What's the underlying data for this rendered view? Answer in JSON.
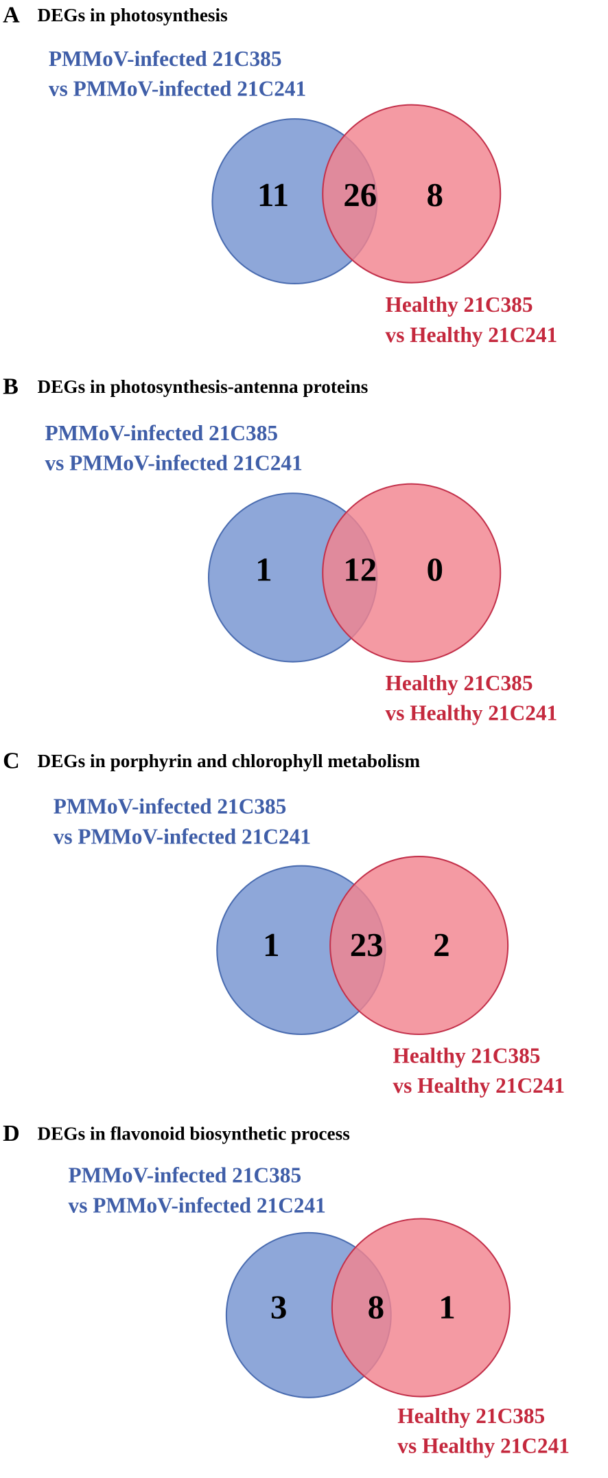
{
  "panels": [
    {
      "letter": "A",
      "title": "DEGs in photosynthesis",
      "set_a": {
        "lines": [
          "PMMoV-infected 21C385",
          "vs PMMoV-infected 21C241"
        ]
      },
      "set_b": {
        "lines": [
          "Healthy 21C385",
          "vs Healthy 21C241"
        ]
      },
      "counts": {
        "only_a": "11",
        "both": "26",
        "only_b": "8"
      }
    },
    {
      "letter": "B",
      "title": "DEGs in photosynthesis-antenna proteins",
      "set_a": {
        "lines": [
          "PMMoV-infected 21C385",
          "vs PMMoV-infected 21C241"
        ]
      },
      "set_b": {
        "lines": [
          "Healthy 21C385",
          "vs Healthy 21C241"
        ]
      },
      "counts": {
        "only_a": "1",
        "both": "12",
        "only_b": "0"
      }
    },
    {
      "letter": "C",
      "title": "DEGs in porphyrin and chlorophyll metabolism",
      "set_a": {
        "lines": [
          "PMMoV-infected 21C385",
          "vs PMMoV-infected 21C241"
        ]
      },
      "set_b": {
        "lines": [
          "Healthy 21C385",
          "vs Healthy 21C241"
        ]
      },
      "counts": {
        "only_a": "1",
        "both": "23",
        "only_b": "2"
      }
    },
    {
      "letter": "D",
      "title": "DEGs in flavonoid biosynthetic process",
      "set_a": {
        "lines": [
          "PMMoV-infected 21C385",
          "vs PMMoV-infected 21C241"
        ]
      },
      "set_b": {
        "lines": [
          "Healthy 21C385",
          "vs Healthy 21C241"
        ]
      },
      "counts": {
        "only_a": "3",
        "both": "8",
        "only_b": "1"
      }
    }
  ]
}
